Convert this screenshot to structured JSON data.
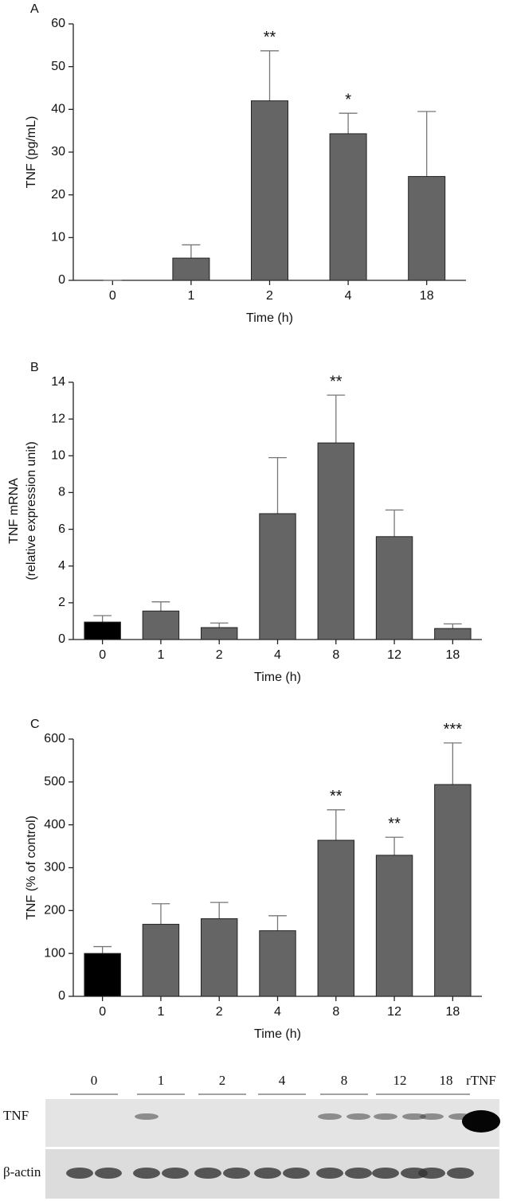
{
  "chart_data": [
    {
      "type": "bar",
      "panel": "A",
      "ylabel": [
        "TNF (pg/mL)"
      ],
      "xlabel": "Time (h)",
      "categories": [
        "0",
        "1",
        "2",
        "4",
        "18"
      ],
      "values": [
        0,
        5.2,
        42,
        34.3,
        24.3
      ],
      "errors": [
        0,
        3.1,
        11.7,
        4.8,
        15.2
      ],
      "colors": [
        "#656565",
        "#656565",
        "#656565",
        "#656565",
        "#656565"
      ],
      "ylim": [
        0,
        60
      ],
      "yticks": [
        0,
        10,
        20,
        30,
        40,
        50,
        60
      ],
      "annotations": [
        {
          "x": "2",
          "text": "**"
        },
        {
          "x": "4",
          "text": "*"
        }
      ]
    },
    {
      "type": "bar",
      "panel": "B",
      "ylabel": [
        "TNF mRNA",
        "(relative expression unit)"
      ],
      "xlabel": "Time (h)",
      "categories": [
        "0",
        "1",
        "2",
        "4",
        "8",
        "12",
        "18"
      ],
      "values": [
        0.95,
        1.55,
        0.65,
        6.85,
        10.7,
        5.6,
        0.6
      ],
      "errors": [
        0.35,
        0.5,
        0.25,
        3.05,
        2.6,
        1.45,
        0.25
      ],
      "colors": [
        "#000000",
        "#656565",
        "#656565",
        "#656565",
        "#656565",
        "#656565",
        "#656565"
      ],
      "ylim": [
        0,
        14
      ],
      "yticks": [
        0,
        2,
        4,
        6,
        8,
        10,
        12,
        14
      ],
      "annotations": [
        {
          "x": "8",
          "text": "**"
        }
      ]
    },
    {
      "type": "bar",
      "panel": "C",
      "ylabel": [
        "TNF (% of control)"
      ],
      "xlabel": "Time (h)",
      "categories": [
        "0",
        "1",
        "2",
        "4",
        "8",
        "12",
        "18"
      ],
      "values": [
        100,
        168,
        181,
        153,
        364,
        329,
        494
      ],
      "errors": [
        16,
        48,
        38,
        35,
        71,
        42,
        97
      ],
      "colors": [
        "#000000",
        "#656565",
        "#656565",
        "#656565",
        "#656565",
        "#656565",
        "#656565"
      ],
      "ylim": [
        0,
        600
      ],
      "yticks": [
        0,
        100,
        200,
        300,
        400,
        500,
        600
      ],
      "annotations": [
        {
          "x": "8",
          "text": "**"
        },
        {
          "x": "12",
          "text": "**"
        },
        {
          "x": "18",
          "text": "***"
        }
      ]
    }
  ],
  "blot": {
    "lanes": [
      "0",
      "1",
      "2",
      "4",
      "8",
      "12",
      "18"
    ],
    "standard": "rTNF",
    "rows": [
      "TNF",
      "β-actin"
    ]
  }
}
